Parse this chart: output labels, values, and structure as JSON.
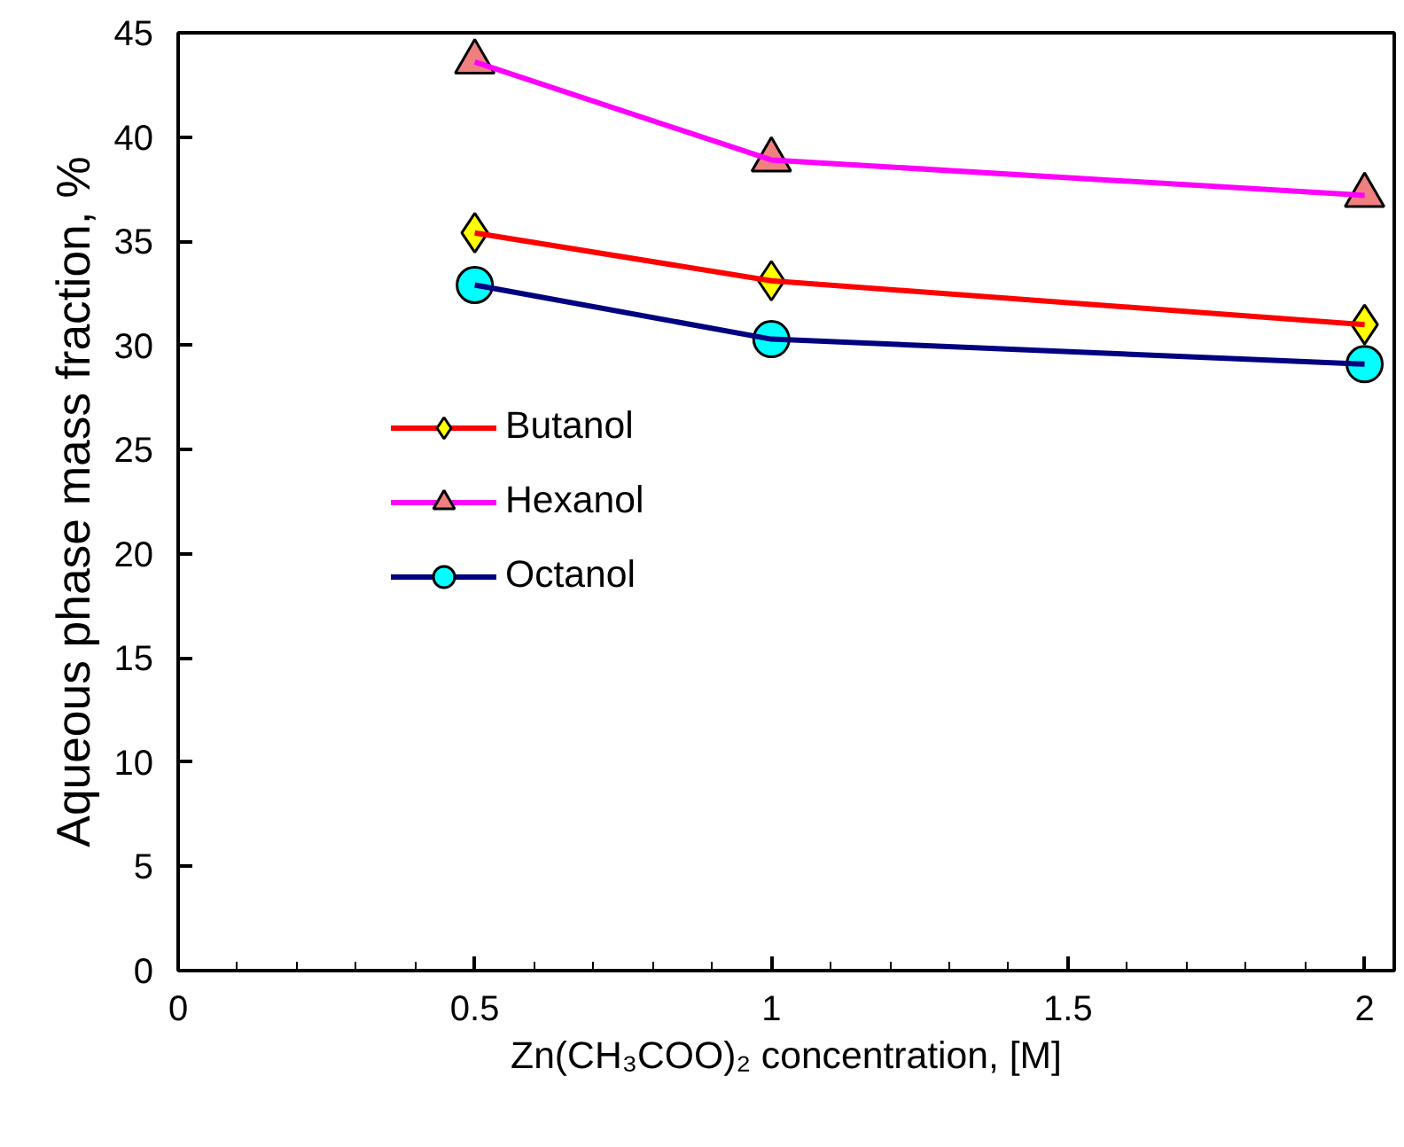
{
  "chart_data": {
    "type": "line",
    "xlabel": "Zn(CH₃COO)₂ concentration, [M]",
    "ylabel": "Aqueous phase mass fraction, %",
    "x": [
      0.5,
      1,
      2
    ],
    "series": [
      {
        "name": "Butanol",
        "color": "#ff0000",
        "marker": "diamond",
        "colors": [
          "#ffff00",
          "#ffff00",
          "#ffff00"
        ],
        "values": [
          35.4,
          33.1,
          31.0
        ]
      },
      {
        "name": "Hexanol",
        "color": "#ff00ff",
        "marker": "triangle",
        "colors": [
          "#f08080",
          "#f08080",
          "#f08080"
        ],
        "values": [
          43.6,
          38.9,
          37.2
        ]
      },
      {
        "name": "Octanol",
        "color": "#000080",
        "marker": "circle",
        "colors": [
          "#00ffff",
          "#00ffff",
          "#00ffff"
        ],
        "values": [
          32.9,
          30.3,
          29.1
        ]
      }
    ],
    "xlim": [
      0,
      2.05
    ],
    "ylim": [
      0,
      45
    ],
    "xticks": [
      0,
      {
        "value": 0.1,
        "label": null
      },
      {
        "value": 0.2,
        "label": null
      },
      {
        "value": 0.3,
        "label": null
      },
      {
        "value": 0.4,
        "label": null
      },
      0.5,
      {
        "value": 0.6,
        "label": null
      },
      {
        "value": 0.7,
        "label": null
      },
      {
        "value": 0.8,
        "label": null
      },
      {
        "value": 0.9,
        "label": null
      },
      1,
      {
        "value": 1.1,
        "label": null
      },
      {
        "value": 1.2,
        "label": null
      },
      {
        "value": 1.3,
        "label": null
      },
      {
        "value": 1.4,
        "label": null
      },
      1.5,
      {
        "value": 1.6,
        "label": null
      },
      {
        "value": 1.7,
        "label": null
      },
      {
        "value": 1.8,
        "label": null
      },
      {
        "value": 1.9,
        "label": null
      },
      2
    ],
    "yticks": [
      0,
      5,
      10,
      15,
      20,
      25,
      30,
      35,
      40,
      45
    ],
    "legend": "left",
    "grid": false,
    "line_style": "solid"
  }
}
